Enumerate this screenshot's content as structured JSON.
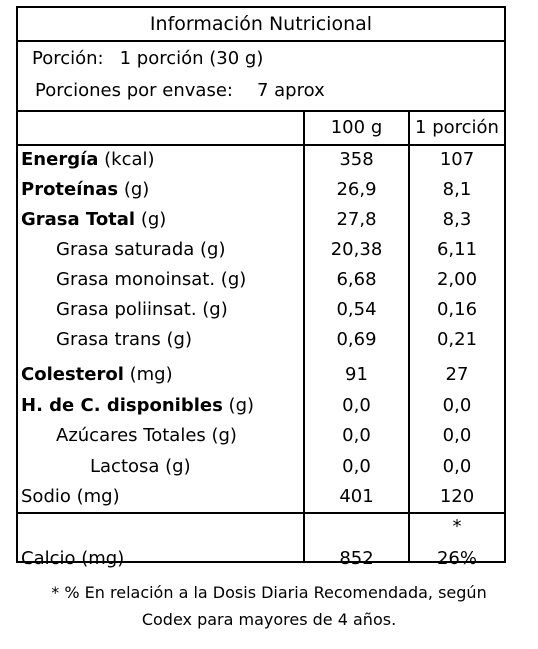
{
  "title": "Información Nutricional",
  "serving": {
    "size_label": "Porción:",
    "size_value": "1 porción (30 g)",
    "per_container_label": "Porciones por envase:",
    "per_container_value": "7 aprox"
  },
  "columns": {
    "per_100g": "100 g",
    "per_serving": "1 porción"
  },
  "rows": [
    {
      "name_bold": "Energía",
      "unit": " (kcal)",
      "v100": "358",
      "vport": "107"
    },
    {
      "name_bold": "Proteínas",
      "unit": " (g)",
      "v100": "26,9",
      "vport": "8,1"
    },
    {
      "name_bold": "Grasa Total",
      "unit": " (g)",
      "v100": "27,8",
      "vport": "8,3"
    },
    {
      "name": "Grasa saturada (g)",
      "v100": "20,38",
      "vport": "6,11"
    },
    {
      "name": "Grasa monoinsat. (g)",
      "v100": "6,68",
      "vport": "2,00"
    },
    {
      "name": "Grasa poliinsat. (g)",
      "v100": "0,54",
      "vport": "0,16"
    },
    {
      "name": "Grasa trans (g)",
      "v100": "0,69",
      "vport": "0,21"
    },
    {
      "name_bold": "Colesterol",
      "unit": " (mg)",
      "v100": "91",
      "vport": "27"
    },
    {
      "name_bold": "H. de C. disponibles",
      "unit": " (g)",
      "v100": "0,0",
      "vport": "0,0"
    },
    {
      "name": "Azúcares Totales (g)",
      "v100": "0,0",
      "vport": "0,0"
    },
    {
      "name": "Lactosa (g)",
      "v100": "0,0",
      "vport": "0,0"
    },
    {
      "name": "Sodio (mg)",
      "v100": "401",
      "vport": "120"
    }
  ],
  "calcium": {
    "asterisk": "*",
    "name": "Calcio (mg)",
    "v100": "852",
    "vport": "26%"
  },
  "footnote": {
    "line1": "* % En relación a la Dosis Diaria Recomendada, según",
    "line2": "Codex para mayores de 4 años."
  }
}
